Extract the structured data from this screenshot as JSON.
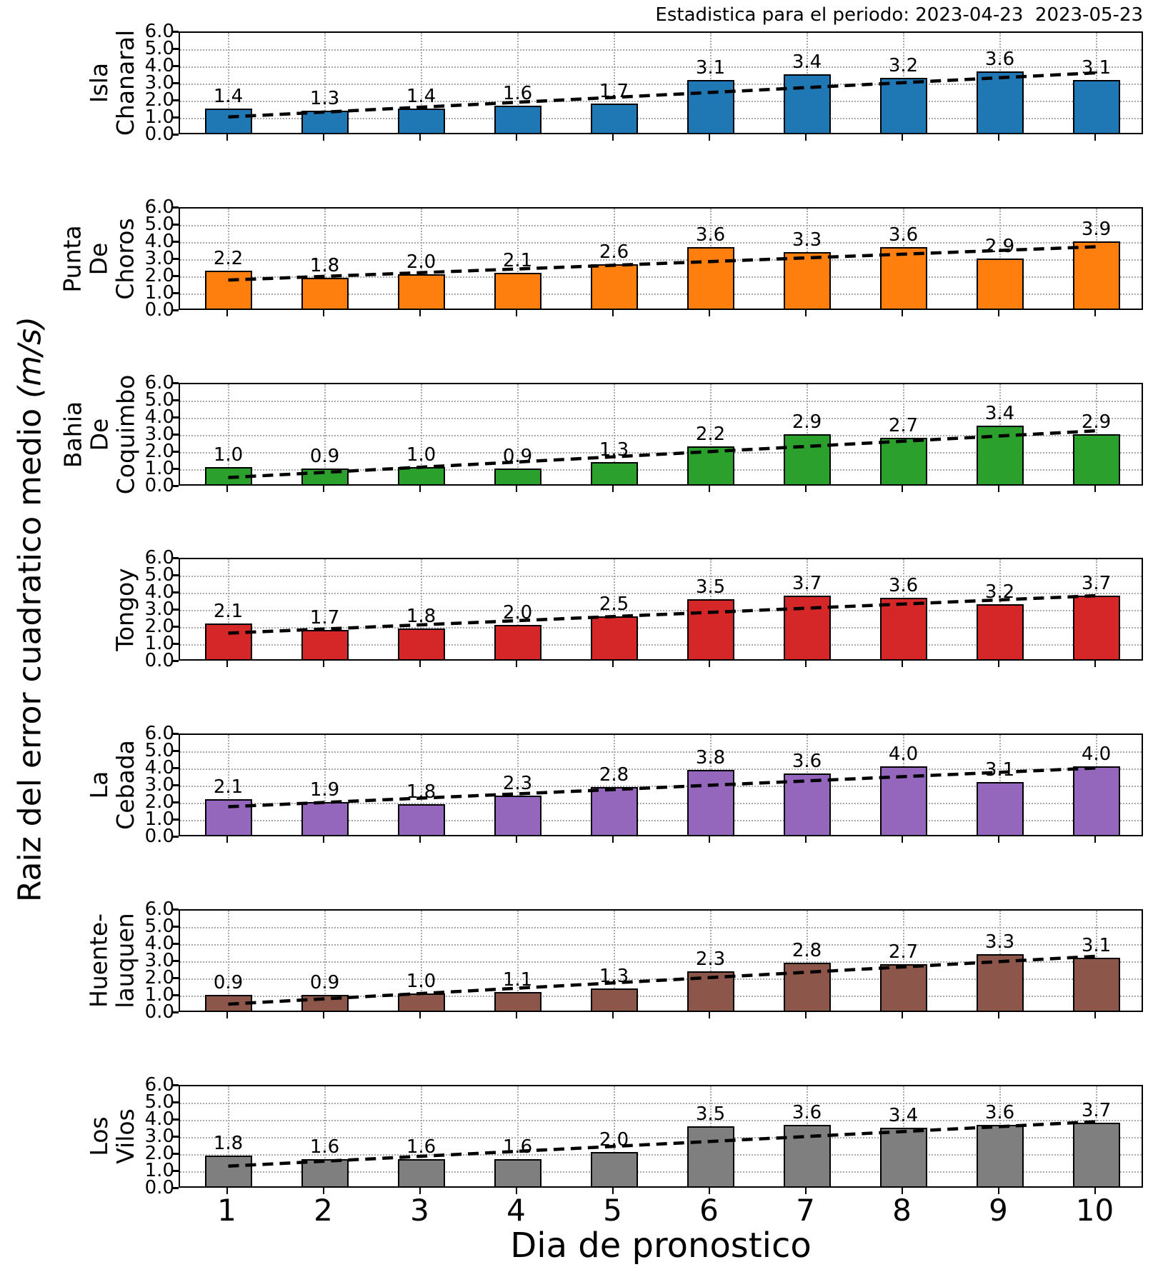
{
  "chart_data": {
    "type": "bar",
    "title": "Estadistica para el periodo: 2023-04-23  2023-05-23",
    "xlabel": "Dia de pronostico",
    "ylabel": "Raiz del error cuadratico medio (m/s)",
    "ylabel_text": "Raiz del error cuadratico medio ",
    "ylabel_units": "(m/s)",
    "x": [
      1,
      2,
      3,
      4,
      5,
      6,
      7,
      8,
      9,
      10
    ],
    "ylim": [
      0,
      6
    ],
    "ytick_labels": [
      "6.0",
      "5.0",
      "4.0",
      "3.0",
      "2.0",
      "1.0",
      "0.0"
    ],
    "grid": "dotted",
    "legend": false,
    "trend_line": "black dashed linear fit per panel",
    "bar_edge_color": "#000000",
    "panels": [
      {
        "name": "Isla Chanaral",
        "label_lines": "Isla\nChanaral",
        "color": "#1f77b4",
        "values": [
          1.4,
          1.3,
          1.4,
          1.6,
          1.7,
          3.1,
          3.4,
          3.2,
          3.6,
          3.1
        ]
      },
      {
        "name": "Punta De Choros",
        "label_lines": "Punta\nDe\nChoros",
        "color": "#ff7f0e",
        "values": [
          2.2,
          1.8,
          2.0,
          2.1,
          2.6,
          3.6,
          3.3,
          3.6,
          2.9,
          3.9
        ]
      },
      {
        "name": "Bahia De Coquimbo",
        "label_lines": "Bahia\nDe\nCoquimbo",
        "color": "#2ca02c",
        "values": [
          1.0,
          0.9,
          1.0,
          0.9,
          1.3,
          2.2,
          2.9,
          2.7,
          3.4,
          2.9
        ]
      },
      {
        "name": "Tongoy",
        "label_lines": "Tongoy",
        "color": "#d62728",
        "values": [
          2.1,
          1.7,
          1.8,
          2.0,
          2.5,
          3.5,
          3.7,
          3.6,
          3.2,
          3.7
        ]
      },
      {
        "name": "La Cebada",
        "label_lines": "La\nCebada",
        "color": "#9467bd",
        "values": [
          2.1,
          1.9,
          1.8,
          2.3,
          2.8,
          3.8,
          3.6,
          4.0,
          3.1,
          4.0
        ]
      },
      {
        "name": "Huente-lauquen",
        "label_lines": "Huente-\nlauquen",
        "color": "#8c564b",
        "values": [
          0.9,
          0.9,
          1.0,
          1.1,
          1.3,
          2.3,
          2.8,
          2.7,
          3.3,
          3.1
        ]
      },
      {
        "name": "Los Vilos",
        "label_lines": "Los\nVilos",
        "color": "#7f7f7f",
        "values": [
          1.8,
          1.6,
          1.6,
          1.6,
          2.0,
          3.5,
          3.6,
          3.4,
          3.6,
          3.7
        ]
      }
    ]
  }
}
